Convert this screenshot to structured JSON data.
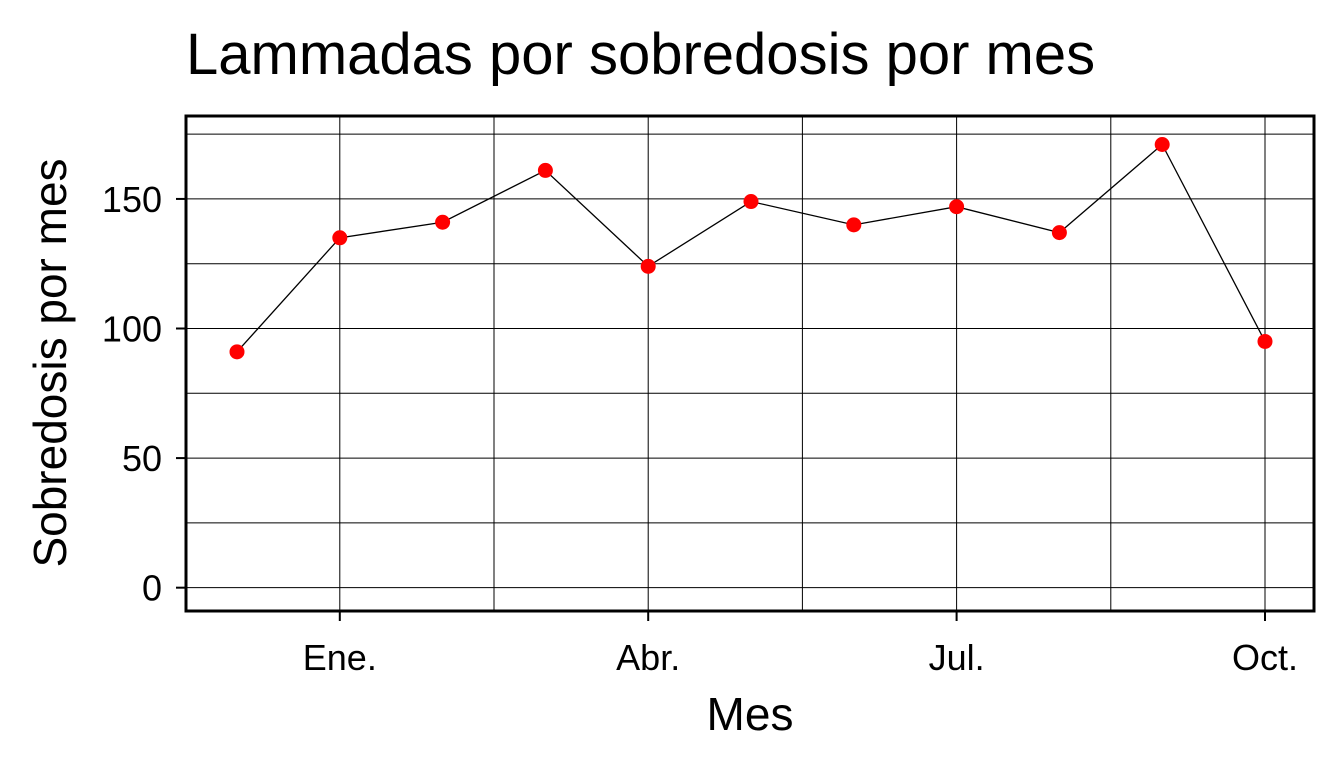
{
  "chart_data": {
    "type": "line",
    "title": "Lammadas por sobredosis por mes",
    "xlabel": "Mes",
    "ylabel": "Sobredosis por mes",
    "x": [
      "2017-12",
      "2018-01",
      "2018-02",
      "2018-03",
      "2018-04",
      "2018-05",
      "2018-06",
      "2018-07",
      "2018-08",
      "2018-09",
      "2018-10"
    ],
    "x_ticks": [
      {
        "x": "2018-01",
        "label": "Ene."
      },
      {
        "x": "2018-04",
        "label": "Abr."
      },
      {
        "x": "2018-07",
        "label": "Jul."
      },
      {
        "x": "2018-10",
        "label": "Oct."
      }
    ],
    "series": [
      {
        "values": [
          91,
          135,
          141,
          161,
          124,
          149,
          140,
          147,
          137,
          171,
          95
        ]
      }
    ],
    "y_ticks": [
      0,
      50,
      100,
      150
    ],
    "ylim": [
      -9,
      182
    ],
    "grid": true,
    "colors": {
      "point": "#ff0000",
      "line": "#000000",
      "grid": "#000000"
    }
  }
}
